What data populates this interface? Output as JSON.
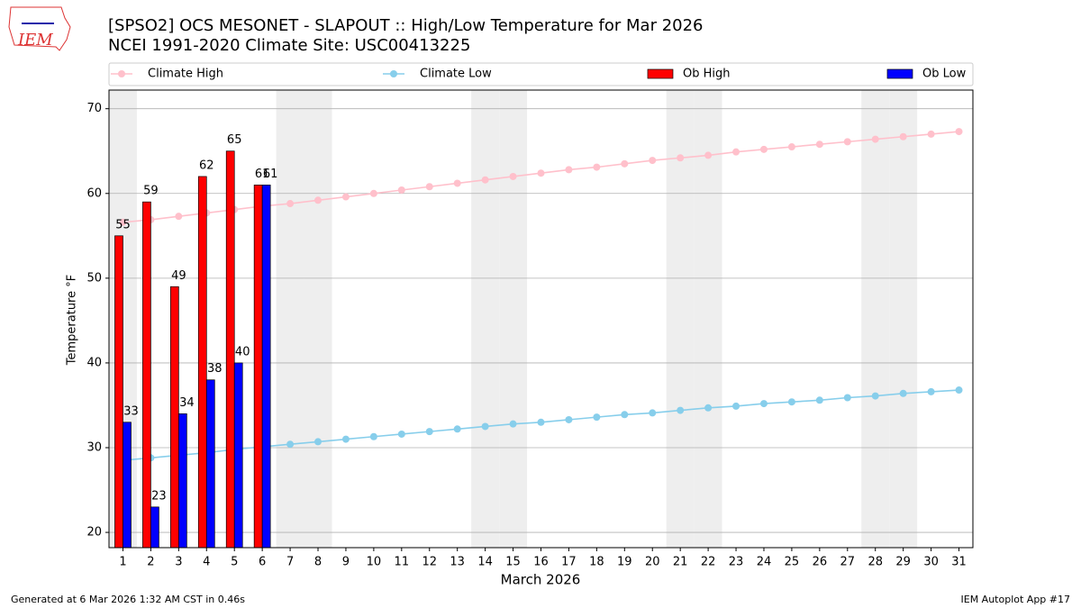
{
  "chart_data": {
    "type": "bar",
    "title": "[SPSO2] OCS MESONET - SLAPOUT :: High/Low Temperature for Mar 2026",
    "subtitle": "NCEI 1991-2020 Climate Site: USC00413225",
    "logo": "IEM",
    "footer_left": "Generated at 6 Mar 2026 1:32 AM CST in 0.46s",
    "footer_right": "IEM Autoplot App #17",
    "x_label": "March 2026",
    "y_label": "Temperature °F",
    "categories": [
      "1",
      "2",
      "3",
      "4",
      "5",
      "6",
      "7",
      "8",
      "9",
      "10",
      "11",
      "12",
      "13",
      "14",
      "15",
      "16",
      "17",
      "18",
      "19",
      "20",
      "21",
      "22",
      "23",
      "24",
      "25",
      "26",
      "27",
      "28",
      "29",
      "30",
      "31"
    ],
    "shaded_categories": [
      0,
      6,
      7,
      13,
      14,
      20,
      21,
      27,
      28
    ],
    "series": [
      {
        "name": "Climate High",
        "type": "line",
        "color": "#ffc0cb",
        "values": [
          56.6,
          56.9,
          57.3,
          57.7,
          58.1,
          58.5,
          58.8,
          59.2,
          59.6,
          60.0,
          60.4,
          60.8,
          61.2,
          61.6,
          62.0,
          62.4,
          62.8,
          63.1,
          63.5,
          63.9,
          64.2,
          64.5,
          64.9,
          65.2,
          65.5,
          65.8,
          66.1,
          66.4,
          66.7,
          67.0,
          67.3
        ]
      },
      {
        "name": "Climate Low",
        "type": "line",
        "color": "#87ceeb",
        "values": [
          28.5,
          28.8,
          29.1,
          29.4,
          29.8,
          30.1,
          30.4,
          30.7,
          31.0,
          31.3,
          31.6,
          31.9,
          32.2,
          32.5,
          32.8,
          33.0,
          33.3,
          33.6,
          33.9,
          34.1,
          34.4,
          34.7,
          34.9,
          35.2,
          35.4,
          35.6,
          35.9,
          36.1,
          36.4,
          36.6,
          36.8
        ]
      },
      {
        "name": "Ob High",
        "type": "bar",
        "color": "#ff0000",
        "values": [
          55,
          59,
          49,
          62,
          65,
          61,
          null,
          null,
          null,
          null,
          null,
          null,
          null,
          null,
          null,
          null,
          null,
          null,
          null,
          null,
          null,
          null,
          null,
          null,
          null,
          null,
          null,
          null,
          null,
          null,
          null
        ]
      },
      {
        "name": "Ob Low",
        "type": "bar",
        "color": "#0000ff",
        "values": [
          33,
          23,
          34,
          38,
          40,
          61,
          null,
          null,
          null,
          null,
          null,
          null,
          null,
          null,
          null,
          null,
          null,
          null,
          null,
          null,
          null,
          null,
          null,
          null,
          null,
          null,
          null,
          null,
          null,
          null,
          null
        ]
      }
    ],
    "ylim": [
      18.2,
      72.2
    ],
    "yticks": [
      20,
      30,
      40,
      50,
      60,
      70
    ],
    "grid": true
  }
}
